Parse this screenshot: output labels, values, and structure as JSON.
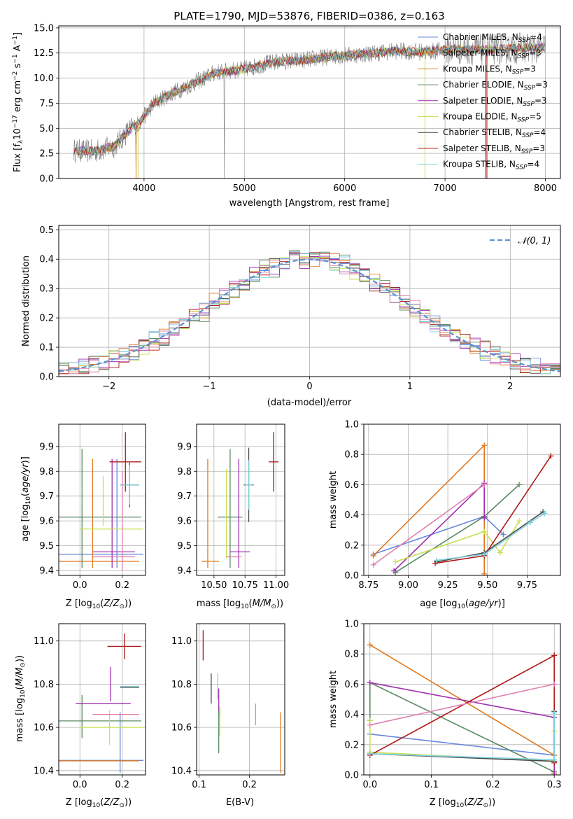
{
  "colors": {
    "c0": "#6688dd",
    "c1": "#e07a20",
    "c2": "#cc8833",
    "c3": "#5a8a62",
    "c4": "#a030b0",
    "c5": "#c8e050",
    "c6": "#4a4a4a",
    "c7": "#b01818",
    "c8": "#80d0dd",
    "pink": "#e080b0",
    "gray": "#808080",
    "grid": "#b0b0b0",
    "normal": "#5b8fd0"
  },
  "chart_data": [
    {
      "id": "spectrum",
      "type": "line",
      "title": "PLATE=1790, MJD=53876, FIBERID=0386, z=0.163",
      "xlabel": "wavelength [Angstrom, rest frame]",
      "ylabel": "Flux [f_λ 10^-17 erg cm^-2 s^-1 A^-1]",
      "xlim": [
        3150,
        8150
      ],
      "ylim": [
        0,
        15.2
      ],
      "xticks": [
        4000,
        5000,
        6000,
        7000,
        8000
      ],
      "yticks": [
        0.0,
        2.5,
        5.0,
        7.5,
        10.0,
        12.5,
        15.0
      ],
      "ytick_labels": [
        "0.0",
        "2.5",
        "5.0",
        "7.5",
        "10.0",
        "12.5",
        "15.0"
      ],
      "legend": "top-right",
      "continuum": {
        "x": [
          3300,
          3500,
          3700,
          3850,
          3950,
          4100,
          4300,
          4500,
          4700,
          5000,
          5300,
          5600,
          5900,
          6200,
          6500,
          6800,
          7100,
          7400,
          7700,
          8000
        ],
        "y": [
          2.8,
          2.7,
          3.2,
          4.8,
          5.5,
          7.5,
          8.6,
          9.5,
          10.5,
          10.9,
          11.6,
          11.8,
          12.2,
          12.4,
          12.7,
          12.6,
          12.9,
          12.8,
          13.0,
          13.0
        ]
      },
      "legend_entries": [
        {
          "label": "Chabrier MILES, N",
          "sub": "SSP",
          "n": "=4",
          "color": "c0"
        },
        {
          "label": "Salpeter MILES, N",
          "sub": "SSP",
          "n": "=3",
          "color": "c1"
        },
        {
          "label": "Kroupa MILES, N",
          "sub": "SSP",
          "n": "=3",
          "color": "c2"
        },
        {
          "label": "Chabrier ELODIE, N",
          "sub": "SSP",
          "n": "=3",
          "color": "c3"
        },
        {
          "label": "Salpeter ELODIE, N",
          "sub": "SSP",
          "n": "=3",
          "color": "c4"
        },
        {
          "label": "Kroupa ELODIE, N",
          "sub": "SSP",
          "n": "=5",
          "color": "c5"
        },
        {
          "label": "Chabrier STELIB, N",
          "sub": "SSP",
          "n": "=4",
          "color": "c6"
        },
        {
          "label": "Salpeter STELIB, N",
          "sub": "SSP",
          "n": "=3",
          "color": "c7"
        },
        {
          "label": "Kroupa STELIB, N",
          "sub": "SSP",
          "n": "=4",
          "color": "c8"
        }
      ]
    },
    {
      "id": "residuals",
      "type": "line",
      "xlabel": "(data-model)/error",
      "ylabel": "Normed distribution",
      "xlim": [
        -2.5,
        2.5
      ],
      "ylim": [
        0,
        0.515
      ],
      "xticks": [
        -2,
        -1,
        0,
        1,
        2
      ],
      "xtick_labels": [
        "−2",
        "−1",
        "0",
        "1",
        "2"
      ],
      "yticks": [
        0.0,
        0.1,
        0.2,
        0.3,
        0.4,
        0.5
      ],
      "ytick_labels": [
        "0.0",
        "0.1",
        "0.2",
        "0.3",
        "0.4",
        "0.5"
      ],
      "legend": "top-right",
      "normal_label": "𝒩(0, 1)",
      "bin_width": 0.1,
      "series_seeds": [
        {
          "color": "c0",
          "noise": 0.03,
          "seed": 3
        },
        {
          "color": "c1",
          "noise": 0.03,
          "seed": 7
        },
        {
          "color": "c3",
          "noise": 0.04,
          "seed": 11
        },
        {
          "color": "c4",
          "noise": 0.03,
          "seed": 17
        },
        {
          "color": "c5",
          "noise": 0.03,
          "seed": 23
        },
        {
          "color": "c6",
          "noise": 0.03,
          "seed": 29
        },
        {
          "color": "c7",
          "noise": 0.03,
          "seed": 31
        },
        {
          "color": "c8",
          "noise": 0.03,
          "seed": 37
        },
        {
          "color": "pink",
          "noise": 0.03,
          "seed": 41
        }
      ]
    },
    {
      "id": "z_vs_age",
      "type": "scatter",
      "xlabel": "Z [log₁₀(Z/Z☉)]",
      "ylabel": "age  [log₁₀(age/yr)]",
      "xlim": [
        -0.1,
        0.31
      ],
      "ylim": [
        9.38,
        9.99
      ],
      "xticks": [
        0.0,
        0.2
      ],
      "xtick_labels": [
        "0.0",
        "0.2"
      ],
      "yticks": [
        9.4,
        9.5,
        9.6,
        9.7,
        9.8,
        9.9
      ],
      "ytick_labels": [
        "9.4",
        "9.5",
        "9.6",
        "9.7",
        "9.8",
        "9.9"
      ],
      "points": [
        {
          "x": 0.1,
          "xerr": 0.2,
          "y": 9.465,
          "yerr": 0.0,
          "color": "c0"
        },
        {
          "x": 0.175,
          "xerr": 0.0,
          "y": 9.63,
          "yerr": 0.22,
          "color": "c0"
        },
        {
          "x": 0.09,
          "xerr": 0.19,
          "y": 9.437,
          "yerr": 0.0,
          "color": "c1"
        },
        {
          "x": 0.06,
          "xerr": 0.0,
          "y": 9.63,
          "yerr": 0.22,
          "color": "c1"
        },
        {
          "x": 0.09,
          "xerr": 0.2,
          "y": 9.615,
          "yerr": 0.0,
          "color": "c3"
        },
        {
          "x": 0.01,
          "xerr": 0.0,
          "y": 9.65,
          "yerr": 0.24,
          "color": "c3"
        },
        {
          "x": 0.16,
          "xerr": 0.1,
          "y": 9.475,
          "yerr": 0.0,
          "color": "c4"
        },
        {
          "x": 0.152,
          "xerr": 0.0,
          "y": 9.63,
          "yerr": 0.22,
          "color": "c4"
        },
        {
          "x": 0.15,
          "xerr": 0.15,
          "y": 9.567,
          "yerr": 0.0,
          "color": "c5"
        },
        {
          "x": 0.11,
          "xerr": 0.0,
          "y": 9.68,
          "yerr": 0.1,
          "color": "c5"
        },
        {
          "x": 0.235,
          "xerr": 0.045,
          "y": 9.745,
          "yerr": 0.09,
          "color": "c6"
        },
        {
          "x": 0.215,
          "xerr": 0.075,
          "y": 9.838,
          "yerr": 0.12,
          "color": "c7"
        },
        {
          "x": 0.235,
          "xerr": 0.045,
          "y": 9.745,
          "yerr": 0.08,
          "color": "c8"
        },
        {
          "x": 0.16,
          "xerr": 0.1,
          "y": 9.455,
          "yerr": 0.0,
          "color": "pink"
        },
        {
          "x": 0.2,
          "xerr": 0.0,
          "y": 9.6,
          "yerr": 0.2,
          "color": "pink"
        }
      ]
    },
    {
      "id": "mass_vs_age",
      "type": "scatter",
      "xlabel": "mass [log₁₀(M/M☉)]",
      "ylabel": "",
      "xlim": [
        10.36,
        11.07
      ],
      "ylim": [
        9.38,
        9.99
      ],
      "xticks": [
        10.5,
        10.75,
        11.0
      ],
      "xtick_labels": [
        "10.50",
        "10.75",
        "11.00"
      ],
      "yticks": [
        9.4,
        9.5,
        9.6,
        9.7,
        9.8,
        9.9
      ],
      "ytick_labels": [
        "9.4",
        "9.5",
        "9.6",
        "9.7",
        "9.8",
        "9.9"
      ],
      "points": [
        {
          "x": 10.45,
          "xerr": 0.0,
          "y": 9.63,
          "yerr": 0.22,
          "color": "c1"
        },
        {
          "x": 10.47,
          "xerr": 0.07,
          "y": 9.437,
          "yerr": 0.0,
          "color": "c1"
        },
        {
          "x": 10.63,
          "xerr": 0.1,
          "y": 9.615,
          "yerr": 0.0,
          "color": "c3"
        },
        {
          "x": 10.63,
          "xerr": 0.0,
          "y": 9.65,
          "yerr": 0.24,
          "color": "c3"
        },
        {
          "x": 10.6,
          "xerr": 0.0,
          "y": 9.63,
          "yerr": 0.18,
          "color": "c5"
        },
        {
          "x": 10.7,
          "xerr": 0.0,
          "y": 9.63,
          "yerr": 0.22,
          "color": "c4"
        },
        {
          "x": 10.71,
          "xerr": 0.08,
          "y": 9.475,
          "yerr": 0.0,
          "color": "c4"
        },
        {
          "x": 10.66,
          "xerr": 0.06,
          "y": 9.455,
          "yerr": 0.0,
          "color": "pink"
        },
        {
          "x": 10.78,
          "xerr": 0.04,
          "y": 9.745,
          "yerr": 0.15,
          "color": "c6"
        },
        {
          "x": 10.78,
          "xerr": 0.03,
          "y": 9.745,
          "yerr": 0.1,
          "color": "c8"
        },
        {
          "x": 10.98,
          "xerr": 0.04,
          "y": 9.838,
          "yerr": 0.12,
          "color": "c7"
        }
      ]
    },
    {
      "id": "age_vs_weight",
      "type": "line",
      "xlabel": "age  [log₁₀(age/yr)]",
      "ylabel": "mass weight",
      "xlim": [
        8.72,
        9.96
      ],
      "ylim": [
        0,
        1.0
      ],
      "xticks": [
        8.75,
        9.0,
        9.25,
        9.5,
        9.75
      ],
      "xtick_labels": [
        "8.75",
        "9.00",
        "9.25",
        "9.50",
        "9.75"
      ],
      "yticks": [
        0.0,
        0.2,
        0.4,
        0.6,
        0.8,
        1.0
      ],
      "ytick_labels": [
        "0.0",
        "0.2",
        "0.4",
        "0.6",
        "0.8",
        "1.0"
      ],
      "series": [
        {
          "color": "c0",
          "x": [
            8.78,
            9.48,
            9.6
          ],
          "y": [
            0.14,
            0.39,
            0.27
          ]
        },
        {
          "color": "c1",
          "x": [
            8.78,
            9.48,
            9.48
          ],
          "y": [
            0.13,
            0.86,
            0.01
          ]
        },
        {
          "color": "c3",
          "x": [
            8.92,
            9.48,
            9.7
          ],
          "y": [
            0.02,
            0.39,
            0.6
          ]
        },
        {
          "color": "c4",
          "x": [
            8.91,
            9.48,
            9.48
          ],
          "y": [
            0.03,
            0.61,
            0.38
          ]
        },
        {
          "color": "c5",
          "x": [
            8.92,
            9.48,
            9.58,
            9.7
          ],
          "y": [
            0.09,
            0.29,
            0.15,
            0.36
          ]
        },
        {
          "color": "c6",
          "x": [
            9.18,
            9.48,
            9.85
          ],
          "y": [
            0.09,
            0.15,
            0.42
          ]
        },
        {
          "color": "c7",
          "x": [
            9.17,
            9.48,
            9.9
          ],
          "y": [
            0.08,
            0.13,
            0.79
          ]
        },
        {
          "color": "c8",
          "x": [
            9.18,
            9.48,
            9.77,
            9.86
          ],
          "y": [
            0.1,
            0.14,
            0.35,
            0.41
          ]
        },
        {
          "color": "pink",
          "x": [
            8.78,
            9.48
          ],
          "y": [
            0.07,
            0.6
          ]
        }
      ]
    },
    {
      "id": "z_vs_mass",
      "type": "scatter",
      "xlabel": "Z [log₁₀(Z/Z☉)]",
      "ylabel": "mass [log₁₀(M/M☉)]",
      "xlim": [
        -0.1,
        0.31
      ],
      "ylim": [
        10.38,
        11.08
      ],
      "xticks": [
        0.0,
        0.2
      ],
      "xtick_labels": [
        "0.0",
        "0.2"
      ],
      "yticks": [
        10.4,
        10.6,
        10.8,
        11.0
      ],
      "ytick_labels": [
        "10.4",
        "10.6",
        "10.8",
        "11.0"
      ],
      "points": [
        {
          "x": 0.1,
          "xerr": 0.2,
          "y": 10.447,
          "yerr": 0.0,
          "color": "c0"
        },
        {
          "x": 0.19,
          "xerr": 0.0,
          "y": 10.53,
          "yerr": 0.14,
          "color": "c0"
        },
        {
          "x": 0.09,
          "xerr": 0.19,
          "y": 10.445,
          "yerr": 0.0,
          "color": "c1"
        },
        {
          "x": 0.09,
          "xerr": 0.2,
          "y": 10.63,
          "yerr": 0.0,
          "color": "c3"
        },
        {
          "x": 0.01,
          "xerr": 0.0,
          "y": 10.65,
          "yerr": 0.1,
          "color": "c3"
        },
        {
          "x": 0.11,
          "xerr": 0.13,
          "y": 10.71,
          "yerr": 0.0,
          "color": "c4"
        },
        {
          "x": 0.145,
          "xerr": 0.0,
          "y": 10.8,
          "yerr": 0.08,
          "color": "c4"
        },
        {
          "x": 0.15,
          "xerr": 0.15,
          "y": 10.6,
          "yerr": 0.0,
          "color": "c5"
        },
        {
          "x": 0.14,
          "xerr": 0.0,
          "y": 10.6,
          "yerr": 0.08,
          "color": "c5"
        },
        {
          "x": 0.235,
          "xerr": 0.045,
          "y": 10.785,
          "yerr": 0.0,
          "color": "c6"
        },
        {
          "x": 0.21,
          "xerr": 0.08,
          "y": 10.975,
          "yerr": 0.06,
          "color": "c7"
        },
        {
          "x": 0.235,
          "xerr": 0.045,
          "y": 10.79,
          "yerr": 0.0,
          "color": "c8"
        },
        {
          "x": 0.17,
          "xerr": 0.11,
          "y": 10.66,
          "yerr": 0.0,
          "color": "pink"
        }
      ]
    },
    {
      "id": "ebv_vs_mass",
      "type": "scatter",
      "xlabel": "E(B-V)",
      "ylabel": "",
      "xlim": [
        0.095,
        0.27
      ],
      "ylim": [
        10.38,
        11.08
      ],
      "xticks": [
        0.1,
        0.2
      ],
      "xtick_labels": [
        "0.1",
        "0.2"
      ],
      "yticks": [
        10.4,
        10.6,
        10.8,
        11.0
      ],
      "ytick_labels": [
        "10.4",
        "10.6",
        "10.8",
        "11.0"
      ],
      "points": [
        {
          "x": 0.108,
          "xerr": 0.0,
          "y": 10.98,
          "yerr": 0.07,
          "color": "c7"
        },
        {
          "x": 0.124,
          "xerr": 0.0,
          "y": 10.78,
          "yerr": 0.07,
          "color": "c6"
        },
        {
          "x": 0.137,
          "xerr": 0.0,
          "y": 10.79,
          "yerr": 0.06,
          "color": "c8"
        },
        {
          "x": 0.139,
          "xerr": 0.0,
          "y": 10.72,
          "yerr": 0.06,
          "color": "c4"
        },
        {
          "x": 0.139,
          "xerr": 0.0,
          "y": 10.58,
          "yerr": 0.1,
          "color": "c3"
        },
        {
          "x": 0.141,
          "xerr": 0.0,
          "y": 10.63,
          "yerr": 0.07,
          "color": "c5"
        },
        {
          "x": 0.212,
          "xerr": 0.0,
          "y": 10.66,
          "yerr": 0.05,
          "color": "pink"
        },
        {
          "x": 0.262,
          "xerr": 0.0,
          "y": 10.53,
          "yerr": 0.14,
          "color": "c1"
        }
      ]
    },
    {
      "id": "z_vs_weight",
      "type": "line",
      "xlabel": "Z [log₁₀(Z/Z☉)]",
      "ylabel": "mass weight",
      "xlim": [
        -0.01,
        0.31
      ],
      "ylim": [
        0,
        1.0
      ],
      "xticks": [
        0.0,
        0.1,
        0.2,
        0.3
      ],
      "xtick_labels": [
        "0.0",
        "0.1",
        "0.2",
        "0.3"
      ],
      "yticks": [
        0.0,
        0.2,
        0.4,
        0.6,
        0.8,
        1.0
      ],
      "ytick_labels": [
        "0.0",
        "0.2",
        "0.4",
        "0.6",
        "0.8",
        "1.0"
      ],
      "series": [
        {
          "color": "c0",
          "x": [
            0.0,
            0.3,
            0.3
          ],
          "y": [
            0.27,
            0.13,
            0.41
          ]
        },
        {
          "color": "c1",
          "x": [
            0.0,
            0.3,
            0.3
          ],
          "y": [
            0.86,
            0.13,
            0.01
          ]
        },
        {
          "color": "c3",
          "x": [
            0.0,
            0.0,
            0.3
          ],
          "y": [
            0.36,
            0.61,
            0.02
          ]
        },
        {
          "color": "c4",
          "x": [
            0.0,
            0.3,
            0.3
          ],
          "y": [
            0.61,
            0.38,
            0.0
          ]
        },
        {
          "color": "c5",
          "x": [
            0.0,
            0.0,
            0.3,
            0.3
          ],
          "y": [
            0.36,
            0.15,
            0.09,
            0.29
          ]
        },
        {
          "color": "c6",
          "x": [
            0.0,
            0.3,
            0.3
          ],
          "y": [
            0.14,
            0.09,
            0.42
          ]
        },
        {
          "color": "c7",
          "x": [
            0.0,
            0.3,
            0.3
          ],
          "y": [
            0.13,
            0.79,
            0.08
          ]
        },
        {
          "color": "c8",
          "x": [
            0.0,
            0.3,
            0.3
          ],
          "y": [
            0.14,
            0.1,
            0.41
          ]
        },
        {
          "color": "pink",
          "x": [
            0.0,
            0.3
          ],
          "y": [
            0.33,
            0.6
          ]
        }
      ]
    }
  ]
}
